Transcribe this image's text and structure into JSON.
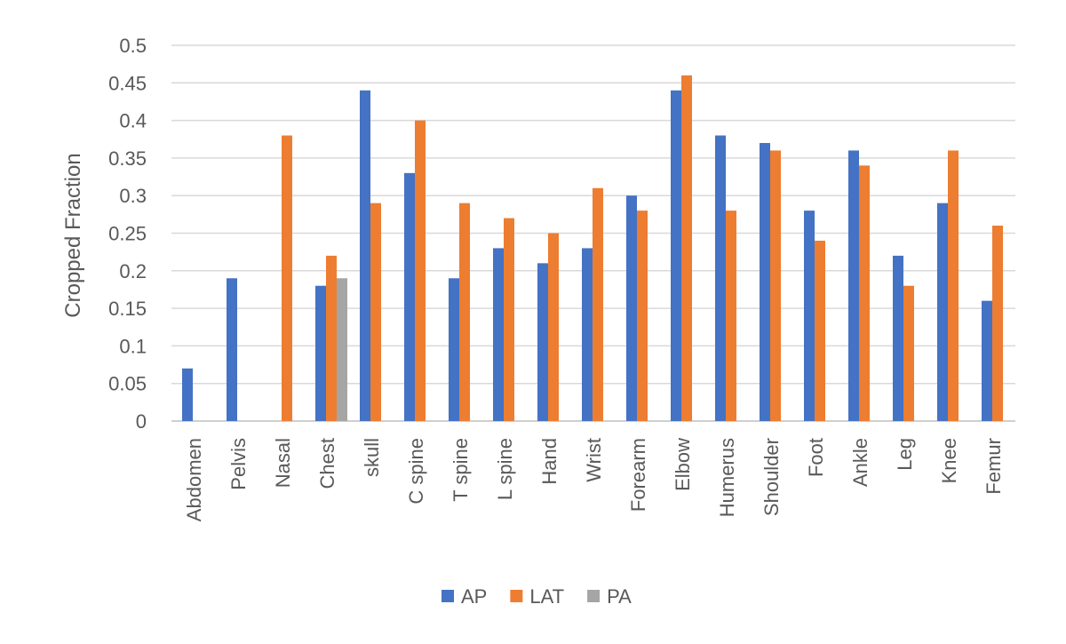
{
  "chart_data": {
    "type": "bar",
    "ylabel": "Cropped Fraction",
    "xlabel": "",
    "ylim": [
      0,
      0.5
    ],
    "yticks": [
      "0",
      "0.05",
      "0.1",
      "0.15",
      "0.2",
      "0.25",
      "0.3",
      "0.35",
      "0.4",
      "0.45",
      "0.5"
    ],
    "grid": true,
    "legend_position": "bottom",
    "categories": [
      "Abdomen",
      "Pelvis",
      "Nasal",
      "Chest",
      "skull",
      "C spine",
      "T spine",
      "L spine",
      "Hand",
      "Wrist",
      "Forearm",
      "Elbow",
      "Humerus",
      "Shoulder",
      "Foot",
      "Ankle",
      "Leg",
      "Knee",
      "Femur"
    ],
    "series": [
      {
        "name": "AP",
        "color": "#4472C4",
        "values": [
          0.07,
          0.19,
          null,
          0.18,
          0.44,
          0.33,
          0.19,
          0.23,
          0.21,
          0.23,
          0.3,
          0.44,
          0.38,
          0.37,
          0.28,
          0.36,
          0.22,
          0.29,
          0.16
        ]
      },
      {
        "name": "LAT",
        "color": "#ED7D31",
        "values": [
          null,
          null,
          0.38,
          0.22,
          0.29,
          0.4,
          0.29,
          0.27,
          0.25,
          0.31,
          0.28,
          0.46,
          0.28,
          0.36,
          0.24,
          0.34,
          0.18,
          0.36,
          0.26
        ]
      },
      {
        "name": "PA",
        "color": "#A5A5A5",
        "values": [
          null,
          null,
          null,
          0.19,
          null,
          null,
          null,
          null,
          null,
          null,
          null,
          null,
          null,
          null,
          null,
          null,
          null,
          null,
          null
        ]
      }
    ]
  }
}
